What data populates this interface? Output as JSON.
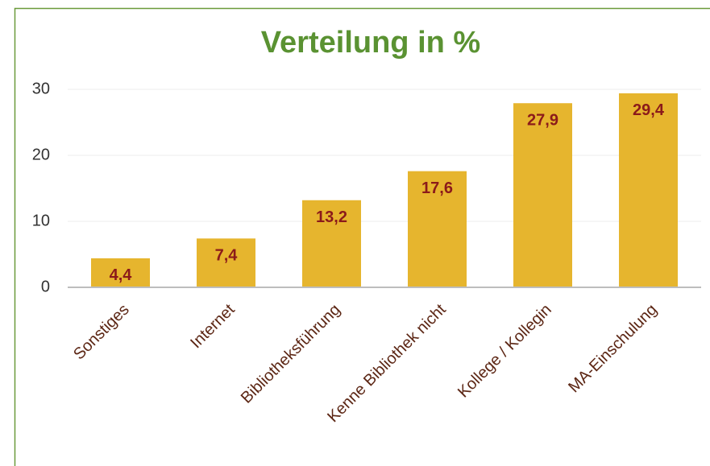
{
  "chart_data": {
    "type": "bar",
    "title": "Verteilung in %",
    "categories": [
      "Sonstiges",
      "Internet",
      "Bibliotheksführung",
      "Kenne Bibliothek nicht",
      "Kollege / Kollegin",
      "MA-Einschulung"
    ],
    "values": [
      4.4,
      7.4,
      13.2,
      17.6,
      27.9,
      29.4
    ],
    "value_labels": [
      "4,4",
      "7,4",
      "13,2",
      "17,6",
      "27,9",
      "29,4"
    ],
    "color": "#e6b52e",
    "ylim": [
      0,
      30
    ],
    "yticks": [
      0,
      10,
      20,
      30
    ],
    "grid": true
  }
}
